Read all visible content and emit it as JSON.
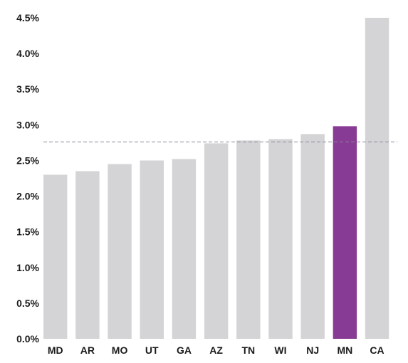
{
  "chart_data": {
    "type": "bar",
    "title": "",
    "xlabel": "",
    "ylabel": "",
    "categories": [
      "MD",
      "AR",
      "MO",
      "UT",
      "GA",
      "AZ",
      "TN",
      "WI",
      "NJ",
      "MN",
      "CA"
    ],
    "values": [
      2.3,
      2.35,
      2.45,
      2.5,
      2.52,
      2.74,
      2.78,
      2.8,
      2.87,
      2.98,
      4.5
    ],
    "yticks": [
      "0.0%",
      "0.5%",
      "1.0%",
      "1.5%",
      "2.0%",
      "2.5%",
      "3.0%",
      "3.5%",
      "4.0%",
      "4.5%"
    ],
    "ylim": [
      0,
      4.5
    ],
    "reference_line": 2.76,
    "highlight_category": "MN",
    "colors": {
      "bar": "#d4d4d6",
      "highlight": "#883b94",
      "reference_line": "#8a8a9a"
    },
    "grid": false,
    "legend": "none"
  }
}
